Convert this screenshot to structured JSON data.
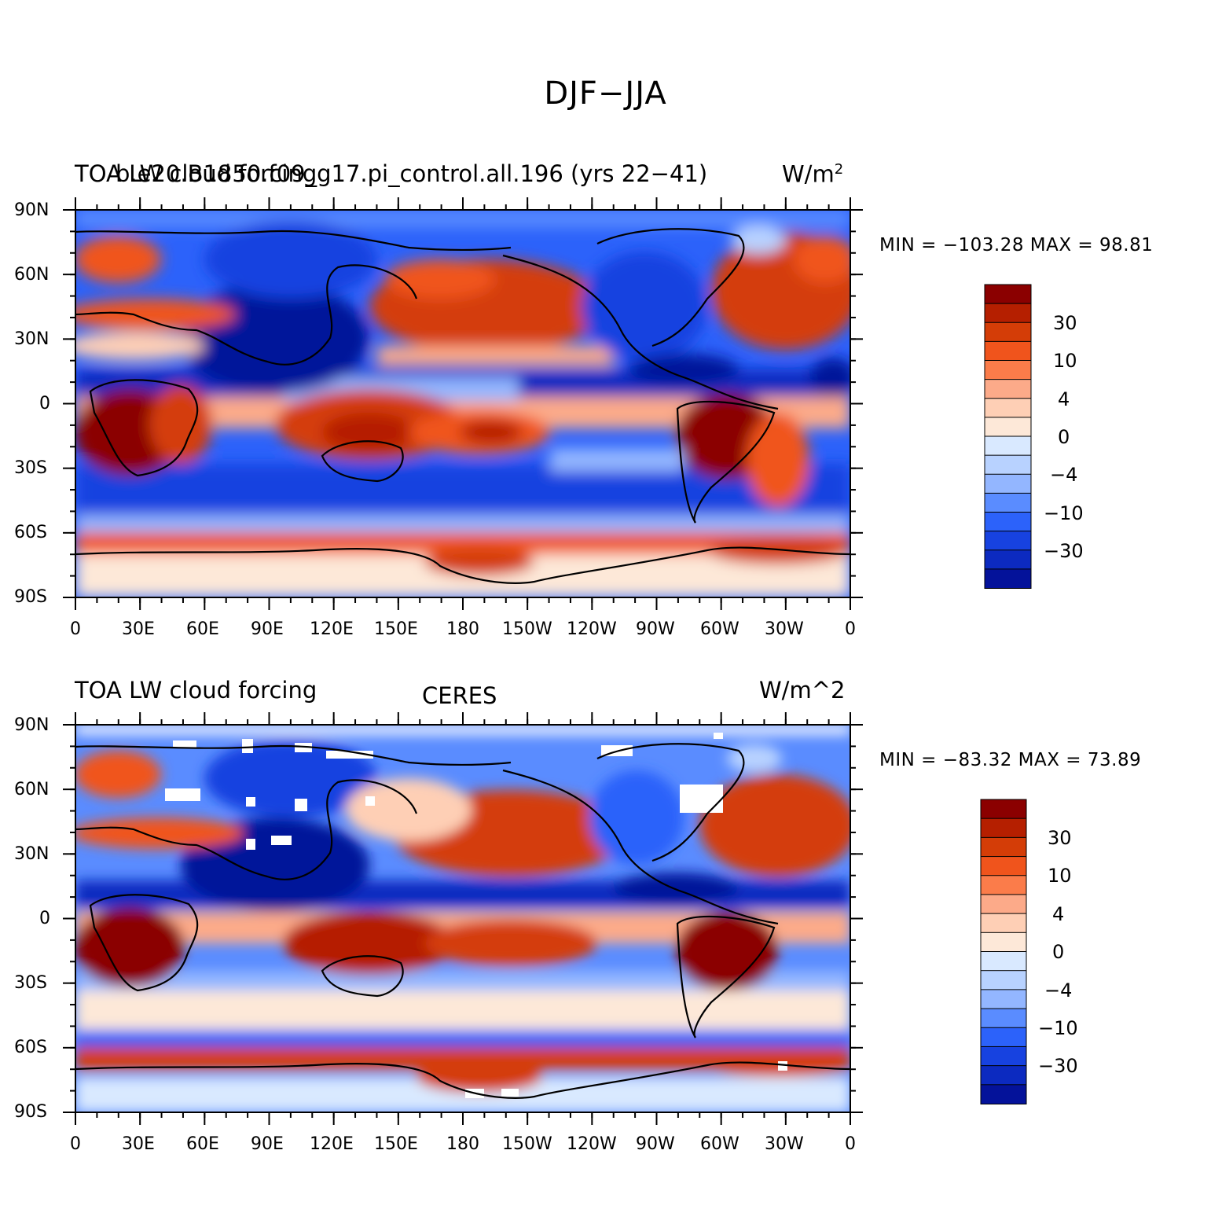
{
  "figure": {
    "title": "DJF−JJA"
  },
  "panels": [
    {
      "id": "model",
      "left_title": "TOA LW cloud forcing",
      "center_title": "b.e20.B1850.f09_g17.pi_control.all.196 (yrs 22−41)",
      "units_base": "W/m",
      "units_sup": "2",
      "stats": "MIN = −103.28 MAX =  98.81"
    },
    {
      "id": "ceres",
      "left_title": "TOA LW cloud forcing",
      "center_title": "CERES",
      "units_base": "W/m^2",
      "units_sup": "",
      "stats": "MIN = −83.32 MAX =  73.89"
    }
  ],
  "axes": {
    "lat_labels": [
      "90N",
      "60N",
      "30N",
      "0",
      "30S",
      "60S",
      "90S"
    ],
    "lon_labels": [
      "0",
      "30E",
      "60E",
      "90E",
      "120E",
      "150E",
      "180",
      "150W",
      "120W",
      "90W",
      "60W",
      "30W",
      "0"
    ]
  },
  "colorbar": {
    "colors": [
      "#8b0000",
      "#b51f00",
      "#d43d07",
      "#f0541c",
      "#fb7c4a",
      "#fcaa89",
      "#fecfb5",
      "#fde8d8",
      "#d9e9ff",
      "#b8d2ff",
      "#93b6ff",
      "#5a8cff",
      "#2c62fa",
      "#1742e0",
      "#0c2ac0",
      "#04129a"
    ],
    "labels": [
      "30",
      "10",
      "4",
      "0",
      "−4",
      "−10",
      "−30"
    ]
  },
  "chart_data": [
    {
      "type": "heatmap",
      "title": "TOA LW cloud forcing",
      "subtitle": "b.e20.B1850.f09_g17.pi_control.all.196 (yrs 22−41)",
      "units": "W/m²",
      "min": -103.28,
      "max": 98.81,
      "x_ticks": [
        "0",
        "30E",
        "60E",
        "90E",
        "120E",
        "150E",
        "180",
        "150W",
        "120W",
        "90W",
        "60W",
        "30W",
        "0"
      ],
      "y_ticks": [
        "90N",
        "60N",
        "30N",
        "0",
        "30S",
        "60S",
        "90S"
      ],
      "levels": [
        -30,
        -10,
        -4,
        0,
        4,
        10,
        30
      ]
    },
    {
      "type": "heatmap",
      "title": "TOA LW cloud forcing",
      "subtitle": "CERES",
      "units": "W/m^2",
      "min": -83.32,
      "max": 73.89,
      "x_ticks": [
        "0",
        "30E",
        "60E",
        "90E",
        "120E",
        "150E",
        "180",
        "150W",
        "120W",
        "90W",
        "60W",
        "30W",
        "0"
      ],
      "y_ticks": [
        "90N",
        "60N",
        "30N",
        "0",
        "30S",
        "60S",
        "90S"
      ],
      "levels": [
        -30,
        -10,
        -4,
        0,
        4,
        10,
        30
      ]
    }
  ]
}
